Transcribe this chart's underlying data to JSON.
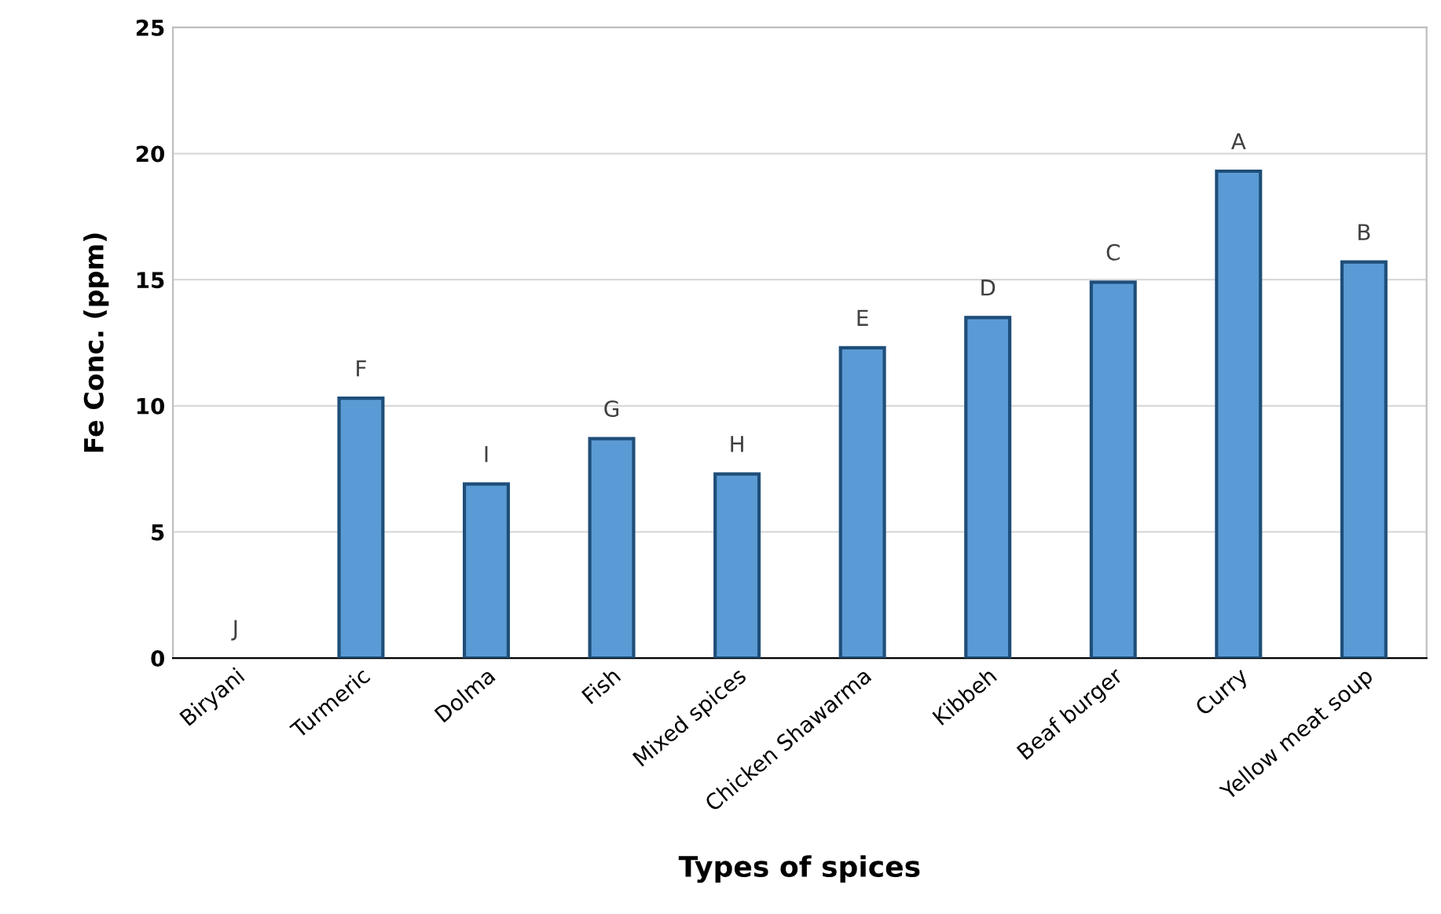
{
  "chart_data": {
    "type": "bar",
    "xlabel": "Types of spices",
    "ylabel": "Fe Conc. (ppm)",
    "categories": [
      "Biryani",
      "Turmeric",
      "Dolma",
      "Fish",
      "Mixed spices",
      "Chicken Shawarma",
      "Kibbeh",
      "Beaf burger",
      "Curry",
      "Yellow meat soup"
    ],
    "values": [
      0,
      10.3,
      6.9,
      8.7,
      7.3,
      12.3,
      13.5,
      14.9,
      19.3,
      15.7
    ],
    "value_labels": [
      "J",
      "F",
      "I",
      "G",
      "H",
      "E",
      "D",
      "C",
      "A",
      "B"
    ],
    "color": "#5b9bd5",
    "ylim": [
      0,
      25
    ],
    "yticks": [
      0,
      5,
      10,
      15,
      20,
      25
    ],
    "grid": "y"
  }
}
